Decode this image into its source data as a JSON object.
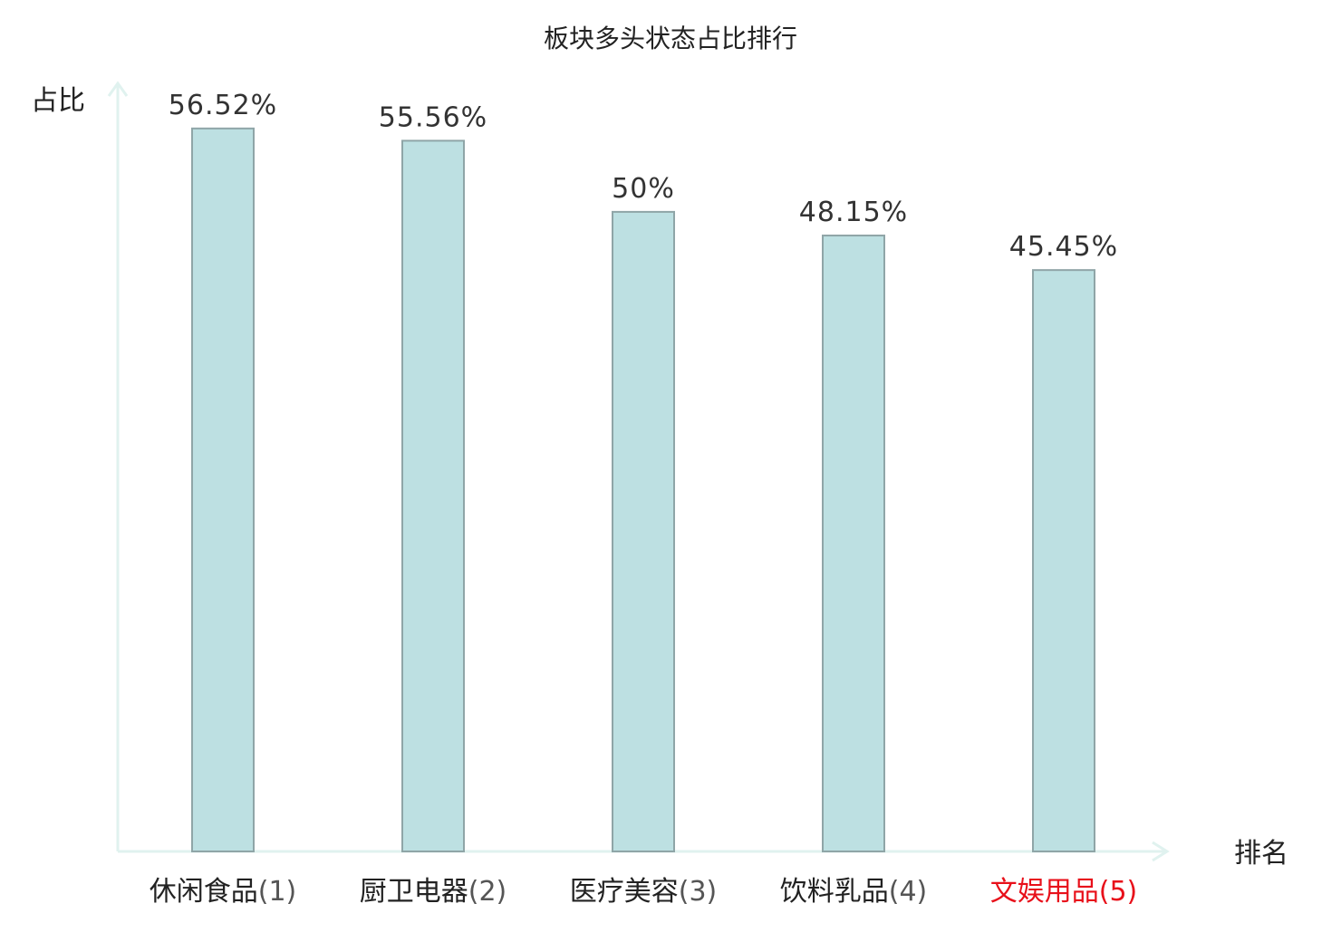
{
  "chart_data": {
    "type": "bar",
    "title": "板块多头状态占比排行",
    "ylabel": "占比",
    "xlabel": "排名",
    "categories": [
      "休闲食品",
      "厨卫电器",
      "医疗美容",
      "饮料乳品",
      "文娱用品"
    ],
    "ranks": [
      "(1)",
      "(2)",
      "(3)",
      "(4)",
      "(5)"
    ],
    "values": [
      56.52,
      55.56,
      50,
      48.15,
      45.45
    ],
    "value_labels": [
      "56.52%",
      "55.56%",
      "50%",
      "48.15%",
      "45.45%"
    ],
    "ylim": [
      0,
      60
    ],
    "grid": false,
    "highlight_index": 4
  },
  "colors": {
    "bar_fill": "#bde0e2",
    "bar_stroke": "#8fa5a7",
    "axis": "#e0f2ef",
    "text": "#222222",
    "rank_text": "#555555",
    "highlight": "#e8101a"
  }
}
